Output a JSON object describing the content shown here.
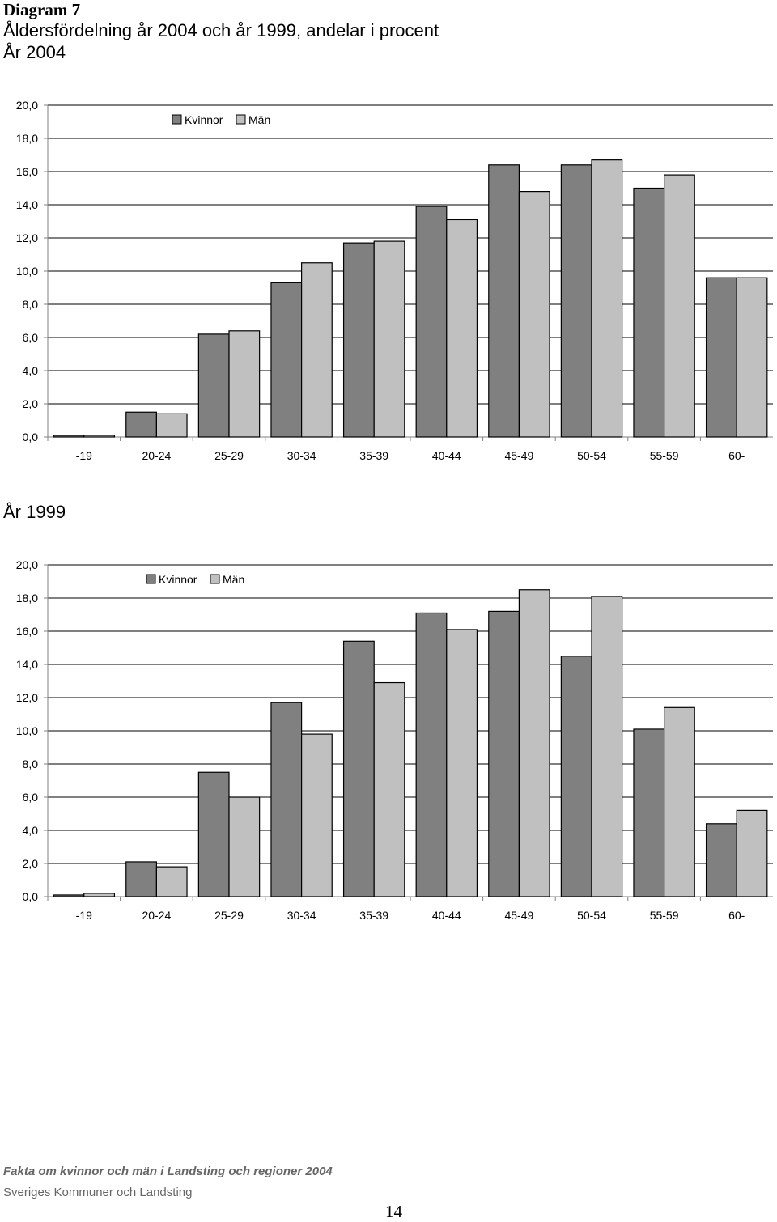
{
  "header": {
    "label": "Diagram 7",
    "title": "Åldersfördelning år 2004 och år 1999, andelar i procent"
  },
  "colors": {
    "kvinnor": "#808080",
    "man": "#c0c0c0",
    "axis": "#808080",
    "grid": "#000000"
  },
  "chart_data": [
    {
      "type": "bar",
      "title": "År 2004",
      "categories": [
        "-19",
        "20-24",
        "25-29",
        "30-34",
        "35-39",
        "40-44",
        "45-49",
        "50-54",
        "55-59",
        "60-"
      ],
      "series": [
        {
          "name": "Kvinnor",
          "values": [
            0.1,
            1.5,
            6.2,
            9.3,
            11.7,
            13.9,
            16.4,
            16.4,
            15.0,
            9.6
          ]
        },
        {
          "name": "Män",
          "values": [
            0.1,
            1.4,
            6.4,
            10.5,
            11.8,
            13.1,
            14.8,
            16.7,
            15.8,
            9.6
          ]
        }
      ],
      "yticks": [
        "0,0",
        "2,0",
        "4,0",
        "6,0",
        "8,0",
        "10,0",
        "12,0",
        "14,0",
        "16,0",
        "18,0",
        "20,0"
      ],
      "ylim": [
        0,
        20
      ],
      "legend": "top-left",
      "grid": true
    },
    {
      "type": "bar",
      "title": "År 1999",
      "categories": [
        "-19",
        "20-24",
        "25-29",
        "30-34",
        "35-39",
        "40-44",
        "45-49",
        "50-54",
        "55-59",
        "60-"
      ],
      "series": [
        {
          "name": "Kvinnor",
          "values": [
            0.1,
            2.1,
            7.5,
            11.7,
            15.4,
            17.1,
            17.2,
            14.5,
            10.1,
            4.4
          ]
        },
        {
          "name": "Män",
          "values": [
            0.2,
            1.8,
            6.0,
            9.8,
            12.9,
            16.1,
            18.5,
            18.1,
            11.4,
            5.2
          ]
        }
      ],
      "yticks": [
        "0,0",
        "2,0",
        "4,0",
        "6,0",
        "8,0",
        "10,0",
        "12,0",
        "14,0",
        "16,0",
        "18,0",
        "20,0"
      ],
      "ylim": [
        0,
        20
      ],
      "legend": "top-left",
      "grid": true
    }
  ],
  "footer": {
    "publication": "Fakta om kvinnor och män i Landsting och regioner 2004",
    "organization": "Sveriges Kommuner och Landsting",
    "page_number": "14"
  }
}
